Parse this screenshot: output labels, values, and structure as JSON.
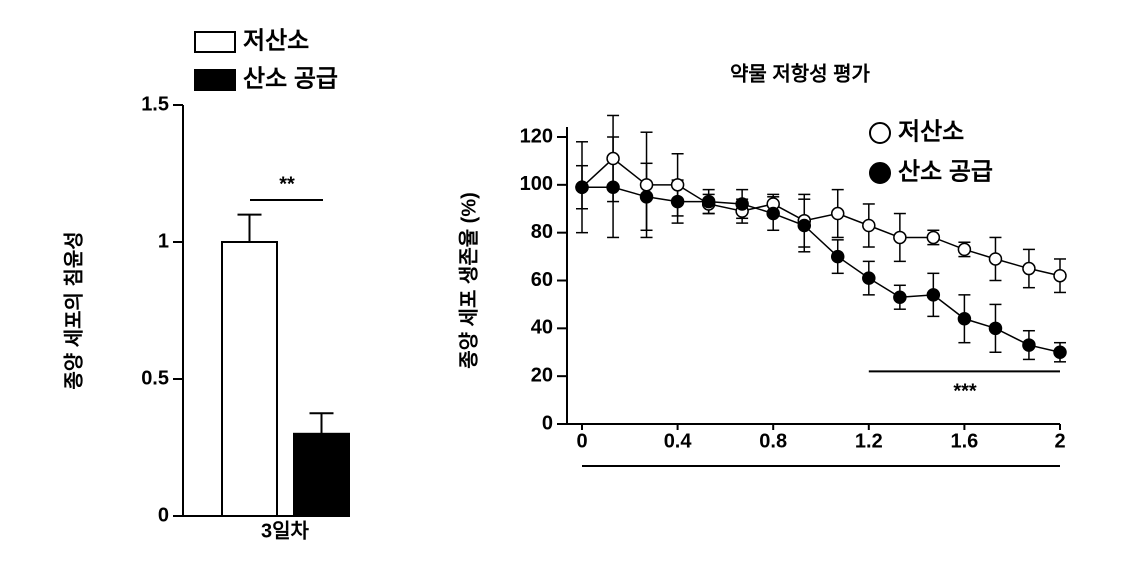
{
  "chart_data": [
    {
      "type": "bar",
      "ylabel": "종양 세포의 침윤성",
      "categories": [
        "3일차"
      ],
      "series": [
        {
          "name": "저산소",
          "color": "#ffffff",
          "values": [
            1.0
          ],
          "errors": [
            0.1
          ]
        },
        {
          "name": "산소 공급",
          "color": "#000000",
          "values": [
            0.3
          ],
          "errors": [
            0.075
          ]
        }
      ],
      "ylim": [
        0,
        1.5
      ],
      "yticks": [
        0,
        0.5,
        1,
        1.5
      ],
      "annotation": "**"
    },
    {
      "type": "line",
      "title": "약물 저항성 평가",
      "ylabel": "종양 세포 생존율 (%)",
      "x": [
        0,
        0.13,
        0.27,
        0.4,
        0.53,
        0.67,
        0.8,
        0.93,
        1.07,
        1.2,
        1.33,
        1.47,
        1.6,
        1.73,
        1.87,
        2
      ],
      "series": [
        {
          "name": "저산소",
          "color": "#ffffff",
          "values": [
            99,
            111,
            100,
            100,
            92,
            89,
            92,
            85,
            88,
            83,
            78,
            78,
            73,
            69,
            65,
            62
          ],
          "errors": [
            19,
            18,
            22,
            13,
            4,
            5,
            4,
            11,
            10,
            9,
            10,
            3,
            3,
            9,
            8,
            7
          ]
        },
        {
          "name": "산소 공급",
          "color": "#000000",
          "values": [
            99,
            99,
            95,
            93,
            93,
            92,
            88,
            83,
            70,
            61,
            53,
            54,
            44,
            40,
            33,
            30
          ],
          "errors": [
            9,
            21,
            14,
            9,
            5,
            6,
            7,
            11,
            7,
            7,
            5,
            9,
            10,
            10,
            6,
            4
          ]
        }
      ],
      "xlim": [
        0,
        2
      ],
      "xticks": [
        0,
        0.4,
        0.8,
        1.2,
        1.6,
        2
      ],
      "ylim": [
        0,
        120
      ],
      "yticks": [
        0,
        20,
        40,
        60,
        80,
        100,
        120
      ],
      "annotation": "***"
    }
  ]
}
